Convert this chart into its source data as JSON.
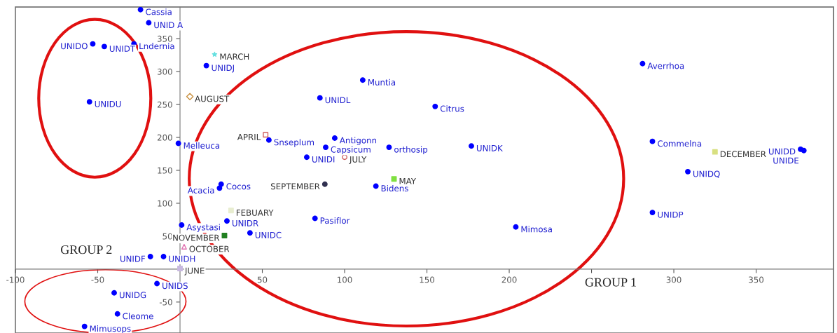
{
  "chart_data": {
    "type": "scatter",
    "annotations": [
      "GROUP 1",
      "GROUP 2"
    ],
    "xlim": [
      -100,
      397
    ],
    "ylim": [
      -97,
      398
    ],
    "xticks": [
      -100,
      -50,
      50,
      100,
      150,
      200,
      {
        "value": 250,
        "label": null
      },
      300,
      350
    ],
    "yticks": [
      -50,
      50,
      100,
      150,
      200,
      250,
      300,
      350
    ],
    "grid": false,
    "series": [
      {
        "color": "#0000ff",
        "marker": "circle",
        "x": [
          -24,
          -19,
          -53,
          -46,
          -28,
          -55,
          16,
          -1,
          54,
          85,
          111,
          155,
          94,
          88.5,
          127,
          177,
          77,
          119,
          24,
          25,
          28.5,
          1,
          42.5,
          82,
          204,
          -18,
          -10,
          -14,
          -40,
          -38,
          -58,
          281,
          287,
          308.5,
          287,
          377,
          379
        ],
        "values": [
          394,
          374,
          342,
          338,
          342,
          254,
          309,
          191,
          196,
          260,
          287,
          247,
          199,
          185,
          185,
          187,
          170,
          126,
          123,
          129,
          73,
          67,
          55,
          77,
          64,
          19,
          19,
          -22,
          -36,
          -68,
          -87,
          312,
          194,
          148,
          86,
          182,
          180
        ],
        "value_labels": [
          "Cassia",
          "UNID A",
          "UNIDO",
          "UNIDT",
          "Lndernia",
          "UNIDU",
          "UNIDJ",
          "Melleuca",
          "Snseplum",
          "UNIDL",
          "Muntia",
          "Citrus",
          "Antigonn",
          "Capsicum",
          "orthosip",
          "UNIDK",
          "UNIDI",
          "Bidens",
          "Acacia",
          "Cocos",
          "UNIDR",
          "Asystasi",
          "UNIDC",
          "Pasiflor",
          "Mimosa",
          "UNIDF",
          "UNIDH",
          "UNIDS",
          "UNIDG",
          "Cleome",
          "Mimusops",
          "Averrhoa",
          "Commelna",
          "UNIDQ",
          "UNIDP",
          "UNIDD",
          "UNIDE"
        ]
      },
      {
        "name": "FEBUARY",
        "color": "#e8edd0",
        "marker": "square",
        "x": [
          31
        ],
        "values": [
          89
        ]
      },
      {
        "name": "MARCH",
        "color": "#66e0e0",
        "marker": "star",
        "x": [
          21
        ],
        "values": [
          326
        ]
      },
      {
        "name": "APRIL",
        "color": "#d06060",
        "marker": "square",
        "x": [
          52
        ],
        "values": [
          204
        ]
      },
      {
        "name": "MAY",
        "color": "#80e040",
        "marker": "square",
        "x": [
          130
        ],
        "values": [
          137
        ]
      },
      {
        "name": "JUNE",
        "color": "#c8b8e0",
        "marker": "square",
        "x": [
          0
        ],
        "values": [
          1
        ]
      },
      {
        "name": "JULY",
        "color": "#d06060",
        "marker": "circle",
        "x": [
          100
        ],
        "values": [
          170
        ]
      },
      {
        "name": "AUGUST",
        "color": "#c89040",
        "marker": "diamond",
        "x": [
          6
        ],
        "values": [
          262
        ]
      },
      {
        "name": "SEPTEMBER",
        "color": "#303050",
        "marker": "circle",
        "x": [
          88
        ],
        "values": [
          129
        ]
      },
      {
        "name": "OCTOBER",
        "color": "#e070b0",
        "marker": "triangle",
        "x": [
          2.5
        ],
        "values": [
          34
        ]
      },
      {
        "name": "NOVEMBER",
        "color": "#208020",
        "marker": "square",
        "x": [
          27
        ],
        "values": [
          51
        ]
      },
      {
        "name": "DECEMBER",
        "color": "#d8e080",
        "marker": "square",
        "x": [
          325
        ],
        "values": [
          178
        ]
      }
    ]
  }
}
